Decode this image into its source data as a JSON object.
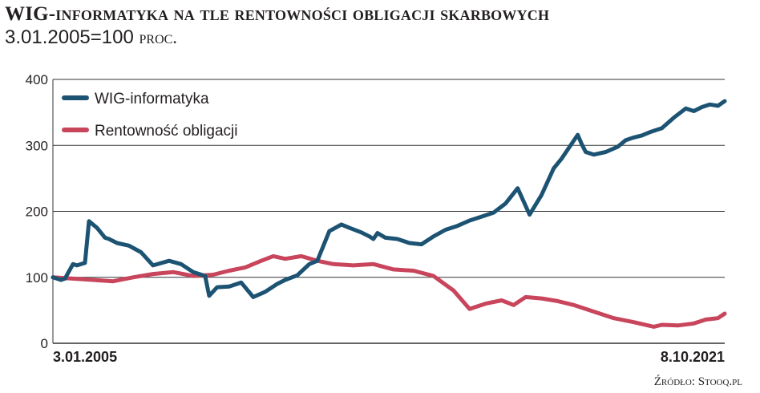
{
  "header": {
    "title_main": "WIG",
    "title_rest": "-informatyka na tle rentowności obligacji skarbowych",
    "subtitle_value": "3.01.2005=100",
    "subtitle_unit": "proc."
  },
  "footer": {
    "source": "Źródło: Stooq.pl"
  },
  "colors": {
    "wig": "#1c5373",
    "bonds": "#c8455c",
    "grid": "#333333",
    "axis_text": "#231f20"
  },
  "chart_data": {
    "type": "line",
    "title": "WIG-informatyka na tle rentowności obligacji skarbowych",
    "subtitle": "3.01.2005=100 proc.",
    "xlabel": "",
    "ylabel": "",
    "ylim": [
      0,
      400
    ],
    "yticks": [
      "0",
      "100",
      "200",
      "300",
      "400"
    ],
    "xtick_labels": [
      "3.01.2005",
      "8.10.2021"
    ],
    "x_start": "2005-01-03",
    "x_end": "2021-10-08",
    "grid": true,
    "legend": "top-left",
    "series": [
      {
        "name": "WIG-informatyka",
        "color": "#1c5373",
        "x": [
          2005.0,
          2005.2,
          2005.3,
          2005.5,
          2005.6,
          2005.8,
          2005.9,
          2006.1,
          2006.3,
          2006.4,
          2006.6,
          2006.9,
          2007.2,
          2007.5,
          2007.9,
          2008.2,
          2008.5,
          2008.8,
          2008.9,
          2009.1,
          2009.4,
          2009.7,
          2010.0,
          2010.3,
          2010.6,
          2010.8,
          2011.1,
          2011.4,
          2011.6,
          2011.9,
          2012.2,
          2012.4,
          2012.7,
          2012.9,
          2013.0,
          2013.1,
          2013.3,
          2013.6,
          2013.9,
          2014.2,
          2014.5,
          2014.8,
          2015.1,
          2015.4,
          2015.7,
          2016.0,
          2016.3,
          2016.6,
          2016.9,
          2017.2,
          2017.5,
          2017.7,
          2017.9,
          2018.1,
          2018.2,
          2018.3,
          2018.5,
          2018.8,
          2019.1,
          2019.3,
          2019.5,
          2019.7,
          2019.9,
          2020.2,
          2020.5,
          2020.8,
          2021.0,
          2021.2,
          2021.4,
          2021.6,
          2021.77
        ],
        "values": [
          100,
          96,
          98,
          120,
          118,
          122,
          185,
          175,
          160,
          158,
          152,
          148,
          138,
          118,
          125,
          120,
          108,
          102,
          72,
          85,
          86,
          92,
          70,
          78,
          90,
          96,
          103,
          120,
          125,
          170,
          180,
          175,
          168,
          162,
          158,
          167,
          160,
          158,
          152,
          150,
          162,
          172,
          178,
          186,
          192,
          198,
          212,
          235,
          195,
          225,
          265,
          280,
          298,
          316,
          302,
          290,
          286,
          290,
          298,
          308,
          312,
          315,
          320,
          326,
          342,
          356,
          352,
          358,
          362,
          360,
          367
        ]
      },
      {
        "name": "Rentowność obligacji",
        "color": "#c8455c",
        "x": [
          2005.0,
          2005.5,
          2006.0,
          2006.5,
          2007.0,
          2007.5,
          2008.0,
          2008.5,
          2009.0,
          2009.4,
          2009.8,
          2010.2,
          2010.5,
          2010.8,
          2011.2,
          2011.6,
          2012.0,
          2012.5,
          2013.0,
          2013.5,
          2014.0,
          2014.5,
          2015.0,
          2015.4,
          2015.8,
          2016.2,
          2016.5,
          2016.8,
          2017.2,
          2017.6,
          2018.0,
          2018.5,
          2019.0,
          2019.5,
          2020.0,
          2020.2,
          2020.6,
          2021.0,
          2021.3,
          2021.6,
          2021.77
        ],
        "values": [
          100,
          98,
          96,
          94,
          100,
          105,
          108,
          102,
          104,
          110,
          115,
          125,
          132,
          128,
          132,
          125,
          120,
          118,
          120,
          112,
          110,
          102,
          80,
          52,
          60,
          65,
          58,
          70,
          68,
          64,
          58,
          48,
          38,
          32,
          25,
          28,
          27,
          30,
          36,
          38,
          45
        ]
      }
    ]
  }
}
